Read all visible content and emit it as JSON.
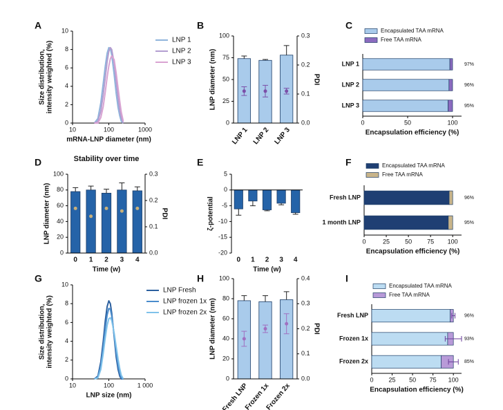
{
  "chart_data": [
    {
      "type": "line",
      "panel": "A",
      "log_x": true,
      "x": [
        40,
        50,
        60,
        70,
        80,
        90,
        100,
        110,
        120,
        140,
        160,
        180,
        200,
        220,
        250
      ],
      "xlim": [
        10,
        1000
      ],
      "xticks": [
        10,
        100,
        1000
      ],
      "ylim": [
        0,
        10
      ],
      "yticks": [
        0,
        2,
        4,
        6,
        8,
        10
      ],
      "xlabel": "mRNA-LNP diameter (nm)",
      "ylabel": [
        "Size distribution,",
        "intensity weighted (%)"
      ],
      "series": [
        {
          "name": "LNP 1",
          "color": "#8fb4dc",
          "values": [
            0,
            0.5,
            2.2,
            4.3,
            6.2,
            7.6,
            8.2,
            8.1,
            7.4,
            5.3,
            3.2,
            1.7,
            0.8,
            0.2,
            0
          ]
        },
        {
          "name": "LNP 2",
          "color": "#b39dd0",
          "values": [
            0,
            0.2,
            1.3,
            3.1,
            5.0,
            6.7,
            7.8,
            8.2,
            8.0,
            6.5,
            4.5,
            2.7,
            1.4,
            0.6,
            0
          ]
        },
        {
          "name": "LNP 3",
          "color": "#d9a3d2",
          "values": [
            0,
            0,
            0.6,
            1.8,
            3.4,
            5.0,
            6.2,
            7.0,
            7.3,
            6.9,
            5.4,
            3.8,
            2.4,
            1.2,
            0.2
          ]
        }
      ]
    },
    {
      "type": "bar",
      "panel": "B",
      "categories": [
        "LNP 1",
        "LNP 2",
        "LNP 3"
      ],
      "ylim": [
        0,
        100
      ],
      "yticks": [
        0,
        25,
        50,
        75,
        100
      ],
      "y2lim": [
        0,
        0.3
      ],
      "y2ticks": [
        {
          "value": 0,
          "label": "0.0"
        },
        0.1,
        0.2,
        0.3
      ],
      "ylabel": "LNP diameter (nm)",
      "ylabel_color": "#3b7cc4",
      "y2label": "PDI",
      "y2label_color": "#6a3d9a",
      "series": [
        {
          "color": "#a9cbeb",
          "values": [
            74,
            72,
            78
          ],
          "errors": [
            3,
            1,
            11
          ]
        },
        {
          "color": "#7b4fa8",
          "values": [
            0.11,
            0.11,
            0.11
          ],
          "errors": [
            0.015,
            0.02,
            0.01
          ],
          "axis": "y2"
        }
      ]
    },
    {
      "type": "hbar",
      "panel": "C",
      "categories": [
        "LNP 1",
        "LNP 2",
        "LNP 3"
      ],
      "xlim": [
        0,
        110
      ],
      "xticks": [
        0,
        50,
        100
      ],
      "xlabel": "Encapsulation efficiency (%)",
      "series": [
        {
          "name": "Encapsulated TAA mRNA",
          "color": "#a9cbeb",
          "values": [
            97,
            96,
            95
          ],
          "value_labels": [
            "97%",
            "96%",
            "95%"
          ]
        },
        {
          "name": "Free TAA mRNA",
          "color": "#8b6bbf",
          "values": [
            3,
            4,
            5
          ]
        }
      ]
    },
    {
      "type": "bar",
      "panel": "D",
      "title": "Stability over time",
      "categories": [
        "0",
        "1",
        "2",
        "3",
        "4"
      ],
      "ylim": [
        0,
        100
      ],
      "yticks": [
        0,
        20,
        40,
        60,
        80,
        100
      ],
      "y2lim": [
        0,
        0.3
      ],
      "y2ticks": [
        {
          "value": 0,
          "label": "0.0"
        },
        0.1,
        0.2,
        0.3
      ],
      "xlabel": "Time (w)",
      "ylabel": "LNP diameter (nm)",
      "ylabel_color": "#000000",
      "y2label": "PDI",
      "y2label_color": "#b59a5e",
      "series": [
        {
          "color": "#2563a8",
          "values": [
            78,
            80,
            76,
            80,
            79
          ],
          "errors": [
            5,
            5,
            5,
            9,
            5
          ]
        },
        {
          "color": "#c9b07a",
          "values": [
            0.17,
            0.14,
            0.17,
            0.16,
            0.17
          ],
          "axis": "y2"
        }
      ]
    },
    {
      "type": "bar",
      "panel": "E",
      "categories": [
        "0",
        "1",
        "2",
        "3",
        "4"
      ],
      "ylim": [
        -20,
        5
      ],
      "yticks": [
        5,
        0,
        -5,
        -10,
        -15,
        -20
      ],
      "xlabel": "Time (w)",
      "ylabel": "ζ-potential",
      "ylabel_color": "#000000",
      "series": [
        {
          "color": "#2563a8",
          "values": [
            -6,
            -3.5,
            -6.3,
            -4.2,
            -7.2
          ],
          "errors": [
            2,
            1.5,
            0.3,
            0.5,
            0.5
          ]
        }
      ]
    },
    {
      "type": "hbar",
      "panel": "F",
      "categories": [
        "Fresh LNP",
        "1 month LNP"
      ],
      "xlim": [
        0,
        110
      ],
      "xticks": [
        0,
        25,
        50,
        75,
        100
      ],
      "xlabel": "Encapsulation efficiency (%)",
      "series": [
        {
          "name": "Encapsulated TAA mRNA",
          "color": "#1f3f73",
          "values": [
            96,
            95
          ],
          "value_labels": [
            "96%",
            "95%"
          ]
        },
        {
          "name": "Free TAA mRNA",
          "color": "#c8b48a",
          "values": [
            4,
            5
          ]
        }
      ]
    },
    {
      "type": "line",
      "panel": "G",
      "log_x": true,
      "x": [
        40,
        50,
        60,
        70,
        80,
        90,
        100,
        110,
        120,
        140,
        160,
        180,
        200,
        220,
        250
      ],
      "xlim": [
        10,
        1000
      ],
      "xticks": [
        10,
        100,
        {
          "value": 1000,
          "label": "1 000"
        }
      ],
      "ylim": [
        0,
        10
      ],
      "yticks": [
        0,
        2,
        4,
        6,
        8,
        10
      ],
      "xlabel": "LNP size (nm)",
      "ylabel": [
        "Size distribution,",
        "intensity weighted (%)"
      ],
      "series": [
        {
          "name": "LNP Fresh",
          "color": "#2b5f9e",
          "values": [
            0,
            0.3,
            1.8,
            4.0,
            6.2,
            7.7,
            8.3,
            8.0,
            7.0,
            4.5,
            2.3,
            1.0,
            0.3,
            0,
            0
          ]
        },
        {
          "name": "LNP frozen 1x",
          "color": "#4a8ccc",
          "values": [
            0,
            0.2,
            1.4,
            3.4,
            5.4,
            6.8,
            7.5,
            7.4,
            6.7,
            4.7,
            2.8,
            1.4,
            0.6,
            0.1,
            0
          ]
        },
        {
          "name": "LNP frozen 2x",
          "color": "#7fc2ea",
          "values": [
            0,
            0.1,
            1.0,
            2.7,
            4.4,
            5.7,
            6.4,
            6.5,
            6.2,
            4.9,
            3.4,
            2.1,
            1.1,
            0.4,
            0
          ]
        }
      ]
    },
    {
      "type": "bar",
      "panel": "H",
      "categories": [
        "Fresh LNP",
        "Frozen 1x",
        "Frozen 2x"
      ],
      "ylim": [
        0,
        100
      ],
      "yticks": [
        0,
        20,
        40,
        60,
        80,
        100
      ],
      "y2lim": [
        0,
        0.4
      ],
      "y2ticks": [
        {
          "value": 0,
          "label": "0.0"
        },
        0.1,
        0.2,
        0.3,
        0.4
      ],
      "ylabel": "LNP diameter (nm)",
      "ylabel_color": "#3b7cc4",
      "y2label": "PDI",
      "y2label_color": "#6a3d9a",
      "series": [
        {
          "color": "#a9cbeb",
          "values": [
            78,
            77,
            79
          ],
          "errors": [
            5,
            6,
            8
          ]
        },
        {
          "color": "#a070c0",
          "values": [
            0.16,
            0.2,
            0.22
          ],
          "errors": [
            0.03,
            0.015,
            0.04
          ],
          "axis": "y2"
        }
      ]
    },
    {
      "type": "hbar",
      "panel": "I",
      "categories": [
        "Fresh LNP",
        "Frozen 1x",
        "Frozen 2x"
      ],
      "xlim": [
        0,
        110
      ],
      "xticks": [
        0,
        25,
        50,
        75,
        100
      ],
      "xlabel": "Encapsulation efficiency (%)",
      "series": [
        {
          "name": "Encapsulated TAA mRNA",
          "color": "#bcdcf2",
          "values": [
            96,
            93,
            85
          ],
          "value_labels": [
            "96%",
            "93%",
            "85%"
          ]
        },
        {
          "name": "Free TAA mRNA",
          "color": "#b89ad8",
          "values": [
            4,
            7,
            15
          ],
          "errors": [
            2,
            10,
            6
          ]
        }
      ]
    }
  ]
}
